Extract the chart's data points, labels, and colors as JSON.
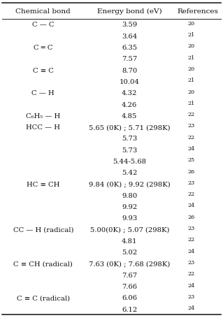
{
  "title_row": [
    "Chemical bond",
    "Energy bond (eV)",
    "References"
  ],
  "rows": [
    {
      "bond": "C — C",
      "energy": "3.59",
      "ref": "20"
    },
    {
      "bond": "",
      "energy": "3.64",
      "ref": "21"
    },
    {
      "bond": "C ═ C",
      "energy": "6.35",
      "ref": "20"
    },
    {
      "bond": "",
      "energy": "7.57",
      "ref": "21"
    },
    {
      "bond": "C ≡ C",
      "energy": "8.70",
      "ref": "20"
    },
    {
      "bond": "",
      "energy": "10.04",
      "ref": "21"
    },
    {
      "bond": "C — H",
      "energy": "4.32",
      "ref": "20"
    },
    {
      "bond": "",
      "energy": "4.26",
      "ref": "21"
    },
    {
      "bond": "C₆H₅ — H",
      "energy": "4.85",
      "ref": "22"
    },
    {
      "bond": "HCC — H",
      "energy": "5.65 (0K) ; 5.71 (298K)",
      "ref": "23"
    },
    {
      "bond": "",
      "energy": "5.73",
      "ref": "22"
    },
    {
      "bond": "",
      "energy": "5.73",
      "ref": "24"
    },
    {
      "bond": "",
      "energy": "5.44-5.68",
      "ref": "25"
    },
    {
      "bond": "",
      "energy": "5.42",
      "ref": "26"
    },
    {
      "bond": "HC ≡ CH",
      "energy": "9.84 (0K) ; 9.92 (298K)",
      "ref": "23"
    },
    {
      "bond": "",
      "energy": "9.80",
      "ref": "22"
    },
    {
      "bond": "",
      "energy": "9.92",
      "ref": "24"
    },
    {
      "bond": "",
      "energy": "9.93",
      "ref": "26"
    },
    {
      "bond": "CC — H (radical)",
      "energy": "5.00(0K) ; 5.07 (298K)",
      "ref": "23"
    },
    {
      "bond": "",
      "energy": "4.81",
      "ref": "22"
    },
    {
      "bond": "",
      "energy": "5.02",
      "ref": "24"
    },
    {
      "bond": "C ≡ CH (radical)",
      "energy": "7.63 (0K) ; 7.68 (298K)",
      "ref": "23"
    },
    {
      "bond": "",
      "energy": "7.67",
      "ref": "22"
    },
    {
      "bond": "",
      "energy": "7.66",
      "ref": "24"
    },
    {
      "bond": "C ≡ C (radical)",
      "energy": "6.06",
      "ref": "23"
    },
    {
      "bond": "",
      "energy": "6.12",
      "ref": "24"
    }
  ],
  "bg_color": "#ffffff",
  "line_color": "#222222",
  "text_color": "#111111",
  "font_size": 7.2,
  "ref_font_size": 5.8,
  "header_font_size": 7.5
}
